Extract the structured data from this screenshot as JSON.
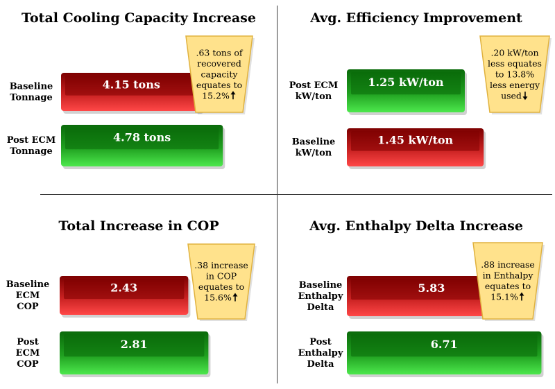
{
  "colors": {
    "baseline": "#c62020",
    "baseline_light": "#ff4747",
    "baseline_dark": "#7d0000",
    "post": "#1f9f1f",
    "post_light": "#4de84d",
    "post_dark": "#0a6a0a",
    "callout_fill": "#ffe28c",
    "callout_stroke": "#e0b23f"
  },
  "chart_data": [
    {
      "type": "bar",
      "orientation": "horizontal",
      "title": "Total Cooling Capacity Increase",
      "bars": [
        {
          "label_lines": [
            "Baseline",
            "Tonnage"
          ],
          "value": 4.15,
          "value_label": "4.15 tons",
          "kind": "baseline"
        },
        {
          "label_lines": [
            "Post ECM",
            "Tonnage"
          ],
          "value": 4.78,
          "value_label": "4.78 tons",
          "kind": "post"
        }
      ],
      "annotation": {
        "lines": [
          ".63 tons of",
          "recovered",
          "capacity",
          "equates to",
          "15.2%"
        ],
        "arrow": "up"
      }
    },
    {
      "type": "bar",
      "orientation": "horizontal",
      "title": "Avg. Efficiency Improvement",
      "bars": [
        {
          "label_lines": [
            "Post ECM",
            "kW/ton"
          ],
          "value": 1.25,
          "value_label": "1.25 kW/ton",
          "kind": "post"
        },
        {
          "label_lines": [
            "Baseline",
            "kW/ton"
          ],
          "value": 1.45,
          "value_label": "1.45 kW/ton",
          "kind": "baseline"
        }
      ],
      "annotation": {
        "lines": [
          ".20 kW/ton",
          "less equates",
          "to 13.8%",
          "less energy",
          "used"
        ],
        "arrow": "down"
      }
    },
    {
      "type": "bar",
      "orientation": "horizontal",
      "title": "Total Increase in COP",
      "bars": [
        {
          "label_lines": [
            "Baseline",
            "ECM",
            "COP"
          ],
          "value": 2.43,
          "value_label": "2.43",
          "kind": "baseline"
        },
        {
          "label_lines": [
            "Post",
            "ECM",
            "COP"
          ],
          "value": 2.81,
          "value_label": "2.81",
          "kind": "post"
        }
      ],
      "annotation": {
        "lines": [
          ".38 increase",
          "in COP",
          "equates to",
          "15.6%"
        ],
        "arrow": "up"
      }
    },
    {
      "type": "bar",
      "orientation": "horizontal",
      "title": "Avg. Enthalpy Delta Increase",
      "bars": [
        {
          "label_lines": [
            "Baseline",
            "Enthalpy",
            "Delta"
          ],
          "value": 5.83,
          "value_label": "5.83",
          "kind": "baseline"
        },
        {
          "label_lines": [
            "Post",
            "Enthalpy",
            "Delta"
          ],
          "value": 6.71,
          "value_label": "6.71",
          "kind": "post"
        }
      ],
      "annotation": {
        "lines": [
          ".88 increase",
          "in Enthalpy",
          "equates to",
          "15.1%"
        ],
        "arrow": "up"
      }
    }
  ]
}
